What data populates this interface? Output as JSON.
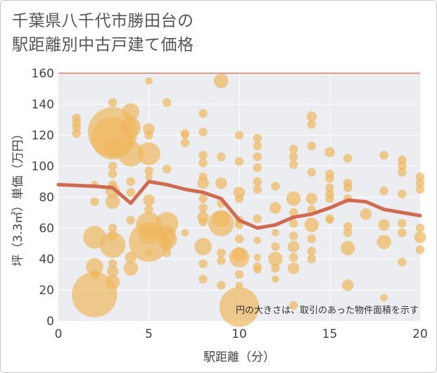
{
  "title": "千葉県八千代市勝田台の\n駅距離別中古戸建て価格",
  "chart_data": {
    "type": "scatter",
    "xlabel": "駅距離（分）",
    "ylabel": "坪（3.3㎡）単価（万円）",
    "xlim": [
      0,
      20
    ],
    "ylim": [
      0,
      160
    ],
    "xticks": [
      "0",
      "5",
      "10",
      "15",
      "20"
    ],
    "yticks": [
      "0",
      "20",
      "40",
      "60",
      "80",
      "100",
      "120",
      "140",
      "160"
    ],
    "grid": true,
    "annotation": "円の大きさは、取引のあった物件面積を示す",
    "colors": {
      "bubble": "#f0b860",
      "line": "#d06a50"
    },
    "line_series": {
      "x": [
        0,
        1,
        2,
        3,
        4,
        5,
        6,
        7,
        8,
        9,
        10,
        11,
        12,
        13,
        14,
        15,
        16,
        17,
        18,
        19,
        20
      ],
      "y": [
        88,
        87.5,
        87,
        86,
        76,
        90,
        88,
        85,
        83,
        79,
        65,
        60,
        62,
        67,
        69,
        73,
        78,
        77,
        72,
        70,
        68
      ]
    },
    "bubbles": [
      {
        "x": 1,
        "y": 131,
        "s": 6
      },
      {
        "x": 1,
        "y": 128,
        "s": 6
      },
      {
        "x": 1,
        "y": 125,
        "s": 6
      },
      {
        "x": 1,
        "y": 121,
        "s": 6
      },
      {
        "x": 2,
        "y": 88,
        "s": 5
      },
      {
        "x": 2,
        "y": 77,
        "s": 6
      },
      {
        "x": 2,
        "y": 54,
        "s": 16
      },
      {
        "x": 2,
        "y": 35,
        "s": 12
      },
      {
        "x": 2,
        "y": 30,
        "s": 6
      },
      {
        "x": 2,
        "y": 17,
        "s": 32
      },
      {
        "x": 3,
        "y": 141,
        "s": 6
      },
      {
        "x": 3,
        "y": 122,
        "s": 35
      },
      {
        "x": 3,
        "y": 118,
        "s": 30
      },
      {
        "x": 3,
        "y": 112,
        "s": 12
      },
      {
        "x": 3,
        "y": 100,
        "s": 6
      },
      {
        "x": 3,
        "y": 95,
        "s": 6
      },
      {
        "x": 3,
        "y": 88,
        "s": 6
      },
      {
        "x": 3,
        "y": 84,
        "s": 10
      },
      {
        "x": 3,
        "y": 77,
        "s": 10
      },
      {
        "x": 3,
        "y": 60,
        "s": 6
      },
      {
        "x": 3,
        "y": 55,
        "s": 7
      },
      {
        "x": 3,
        "y": 49,
        "s": 18
      },
      {
        "x": 3,
        "y": 37,
        "s": 6
      },
      {
        "x": 3,
        "y": 32,
        "s": 8
      },
      {
        "x": 3,
        "y": 25,
        "s": 10
      },
      {
        "x": 4,
        "y": 135,
        "s": 12
      },
      {
        "x": 4,
        "y": 125,
        "s": 14
      },
      {
        "x": 4,
        "y": 108,
        "s": 18
      },
      {
        "x": 4,
        "y": 90,
        "s": 6
      },
      {
        "x": 4,
        "y": 83,
        "s": 6
      },
      {
        "x": 4,
        "y": 65,
        "s": 6
      },
      {
        "x": 4,
        "y": 41,
        "s": 8
      },
      {
        "x": 4,
        "y": 34,
        "s": 10
      },
      {
        "x": 5,
        "y": 155,
        "s": 5
      },
      {
        "x": 5,
        "y": 124,
        "s": 8
      },
      {
        "x": 5,
        "y": 120,
        "s": 6
      },
      {
        "x": 5,
        "y": 108,
        "s": 16
      },
      {
        "x": 5,
        "y": 97,
        "s": 6
      },
      {
        "x": 5,
        "y": 93,
        "s": 5
      },
      {
        "x": 5,
        "y": 78,
        "s": 8
      },
      {
        "x": 5,
        "y": 72,
        "s": 6
      },
      {
        "x": 5,
        "y": 62,
        "s": 18
      },
      {
        "x": 5,
        "y": 56,
        "s": 14
      },
      {
        "x": 5,
        "y": 51,
        "s": 28
      },
      {
        "x": 5,
        "y": 44,
        "s": 5
      },
      {
        "x": 6,
        "y": 141,
        "s": 6
      },
      {
        "x": 6,
        "y": 98,
        "s": 6
      },
      {
        "x": 6,
        "y": 63,
        "s": 16
      },
      {
        "x": 6,
        "y": 56,
        "s": 12
      },
      {
        "x": 6,
        "y": 53,
        "s": 14
      },
      {
        "x": 6,
        "y": 49,
        "s": 8
      },
      {
        "x": 6,
        "y": 44,
        "s": 6
      },
      {
        "x": 7,
        "y": 121,
        "s": 6
      },
      {
        "x": 7,
        "y": 120,
        "s": 5
      },
      {
        "x": 7,
        "y": 115,
        "s": 6
      },
      {
        "x": 7,
        "y": 57,
        "s": 5
      },
      {
        "x": 8,
        "y": 134,
        "s": 6
      },
      {
        "x": 8,
        "y": 122,
        "s": 6
      },
      {
        "x": 8,
        "y": 107,
        "s": 6
      },
      {
        "x": 8,
        "y": 102,
        "s": 6
      },
      {
        "x": 8,
        "y": 93,
        "s": 6
      },
      {
        "x": 8,
        "y": 89,
        "s": 8
      },
      {
        "x": 8,
        "y": 79,
        "s": 6
      },
      {
        "x": 8,
        "y": 73,
        "s": 6
      },
      {
        "x": 8,
        "y": 67,
        "s": 8
      },
      {
        "x": 8,
        "y": 64,
        "s": 6
      },
      {
        "x": 8,
        "y": 48,
        "s": 12
      },
      {
        "x": 8,
        "y": 37,
        "s": 6
      },
      {
        "x": 8,
        "y": 27,
        "s": 6
      },
      {
        "x": 9,
        "y": 155,
        "s": 10
      },
      {
        "x": 9,
        "y": 106,
        "s": 6
      },
      {
        "x": 9,
        "y": 89,
        "s": 8
      },
      {
        "x": 9,
        "y": 76,
        "s": 6
      },
      {
        "x": 9,
        "y": 66,
        "s": 12
      },
      {
        "x": 9,
        "y": 63,
        "s": 18
      },
      {
        "x": 9,
        "y": 44,
        "s": 6
      },
      {
        "x": 9,
        "y": 39,
        "s": 6
      },
      {
        "x": 9,
        "y": 23,
        "s": 6
      },
      {
        "x": 10,
        "y": 120,
        "s": 6
      },
      {
        "x": 10,
        "y": 103,
        "s": 6
      },
      {
        "x": 10,
        "y": 83,
        "s": 8
      },
      {
        "x": 10,
        "y": 79,
        "s": 6
      },
      {
        "x": 10,
        "y": 65,
        "s": 6
      },
      {
        "x": 10,
        "y": 62,
        "s": 6
      },
      {
        "x": 10,
        "y": 53,
        "s": 6
      },
      {
        "x": 10,
        "y": 43,
        "s": 10
      },
      {
        "x": 10,
        "y": 41,
        "s": 14
      },
      {
        "x": 10,
        "y": 30,
        "s": 6
      },
      {
        "x": 10,
        "y": 23,
        "s": 5
      },
      {
        "x": 10,
        "y": 9,
        "s": 28
      },
      {
        "x": 11,
        "y": 118,
        "s": 6
      },
      {
        "x": 11,
        "y": 113,
        "s": 6
      },
      {
        "x": 11,
        "y": 106,
        "s": 6
      },
      {
        "x": 11,
        "y": 99,
        "s": 6
      },
      {
        "x": 11,
        "y": 90,
        "s": 6
      },
      {
        "x": 11,
        "y": 85,
        "s": 6
      },
      {
        "x": 11,
        "y": 66,
        "s": 6
      },
      {
        "x": 11,
        "y": 52,
        "s": 5
      },
      {
        "x": 11,
        "y": 41,
        "s": 5
      },
      {
        "x": 11,
        "y": 35,
        "s": 6
      },
      {
        "x": 11,
        "y": 33,
        "s": 5
      },
      {
        "x": 12,
        "y": 87,
        "s": 6
      },
      {
        "x": 12,
        "y": 73,
        "s": 8
      },
      {
        "x": 12,
        "y": 57,
        "s": 5
      },
      {
        "x": 12,
        "y": 48,
        "s": 6
      },
      {
        "x": 12,
        "y": 40,
        "s": 10
      },
      {
        "x": 12,
        "y": 34,
        "s": 6
      },
      {
        "x": 12,
        "y": 27,
        "s": 5
      },
      {
        "x": 13,
        "y": 111,
        "s": 6
      },
      {
        "x": 13,
        "y": 106,
        "s": 6
      },
      {
        "x": 13,
        "y": 101,
        "s": 6
      },
      {
        "x": 13,
        "y": 79,
        "s": 10
      },
      {
        "x": 13,
        "y": 70,
        "s": 6
      },
      {
        "x": 13,
        "y": 63,
        "s": 6
      },
      {
        "x": 13,
        "y": 55,
        "s": 6
      },
      {
        "x": 13,
        "y": 48,
        "s": 8
      },
      {
        "x": 13,
        "y": 41,
        "s": 6
      },
      {
        "x": 13,
        "y": 34,
        "s": 8
      },
      {
        "x": 13,
        "y": 10,
        "s": 6
      },
      {
        "x": 14,
        "y": 132,
        "s": 7
      },
      {
        "x": 14,
        "y": 127,
        "s": 6
      },
      {
        "x": 14,
        "y": 113,
        "s": 6
      },
      {
        "x": 14,
        "y": 96,
        "s": 6
      },
      {
        "x": 14,
        "y": 79,
        "s": 8
      },
      {
        "x": 14,
        "y": 72,
        "s": 6
      },
      {
        "x": 14,
        "y": 62,
        "s": 10
      },
      {
        "x": 14,
        "y": 53,
        "s": 6
      },
      {
        "x": 14,
        "y": 45,
        "s": 6
      },
      {
        "x": 14,
        "y": 40,
        "s": 6
      },
      {
        "x": 15,
        "y": 109,
        "s": 7
      },
      {
        "x": 15,
        "y": 95,
        "s": 6
      },
      {
        "x": 15,
        "y": 92,
        "s": 6
      },
      {
        "x": 15,
        "y": 86,
        "s": 6
      },
      {
        "x": 15,
        "y": 82,
        "s": 6
      },
      {
        "x": 15,
        "y": 79,
        "s": 6
      },
      {
        "x": 15,
        "y": 66,
        "s": 6
      },
      {
        "x": 15,
        "y": 65,
        "s": 5
      },
      {
        "x": 16,
        "y": 105,
        "s": 6
      },
      {
        "x": 16,
        "y": 89,
        "s": 6
      },
      {
        "x": 16,
        "y": 86,
        "s": 6
      },
      {
        "x": 16,
        "y": 79,
        "s": 6
      },
      {
        "x": 16,
        "y": 61,
        "s": 6
      },
      {
        "x": 16,
        "y": 57,
        "s": 6
      },
      {
        "x": 16,
        "y": 47,
        "s": 10
      },
      {
        "x": 16,
        "y": 23,
        "s": 8
      },
      {
        "x": 17,
        "y": 69,
        "s": 8
      },
      {
        "x": 18,
        "y": 107,
        "s": 6
      },
      {
        "x": 18,
        "y": 84,
        "s": 6
      },
      {
        "x": 18,
        "y": 62,
        "s": 8
      },
      {
        "x": 18,
        "y": 51,
        "s": 10
      },
      {
        "x": 18,
        "y": 15,
        "s": 5
      },
      {
        "x": 19,
        "y": 104,
        "s": 6
      },
      {
        "x": 19,
        "y": 100,
        "s": 6
      },
      {
        "x": 19,
        "y": 96,
        "s": 6
      },
      {
        "x": 19,
        "y": 82,
        "s": 6
      },
      {
        "x": 19,
        "y": 63,
        "s": 6
      },
      {
        "x": 19,
        "y": 57,
        "s": 6
      },
      {
        "x": 19,
        "y": 38,
        "s": 6
      },
      {
        "x": 20,
        "y": 93,
        "s": 6
      },
      {
        "x": 20,
        "y": 89,
        "s": 6
      },
      {
        "x": 20,
        "y": 85,
        "s": 6
      },
      {
        "x": 20,
        "y": 60,
        "s": 6
      },
      {
        "x": 20,
        "y": 54,
        "s": 8
      },
      {
        "x": 20,
        "y": 46,
        "s": 6
      }
    ]
  }
}
